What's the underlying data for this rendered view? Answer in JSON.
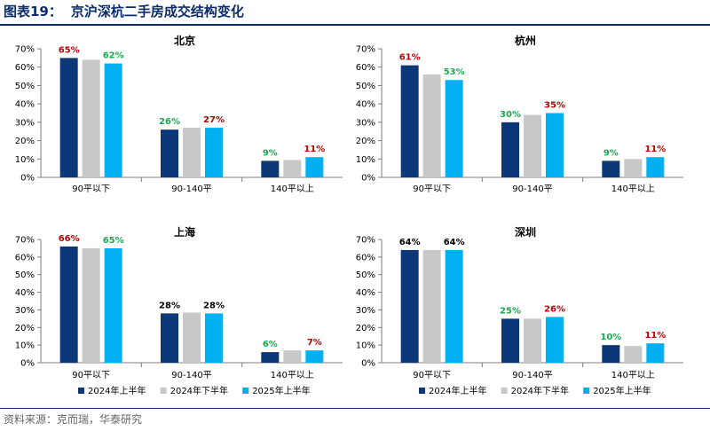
{
  "figure": {
    "label": "图表19：",
    "title": "京沪深杭二手房成交结构变化",
    "source": "资料来源：克而瑞，华泰研究"
  },
  "colors": {
    "series": [
      "#0c3878",
      "#c8c8c8",
      "#00b0f0"
    ],
    "label_red": "#c00000",
    "label_green": "#1aaa50",
    "label_black": "#000000",
    "axis": "#7f7f7f",
    "title_blue": "#0a2c6b"
  },
  "chart_data": [
    {
      "type": "bar",
      "title": "北京",
      "categories": [
        "90平以下",
        "90-140平",
        "140平以上"
      ],
      "ylim": [
        0,
        70
      ],
      "yticks": [
        "0%",
        "10%",
        "20%",
        "30%",
        "40%",
        "50%",
        "60%",
        "70%"
      ],
      "series": [
        {
          "name": "2024年上半年",
          "values": [
            65,
            26,
            9
          ]
        },
        {
          "name": "2024年下半年",
          "values": [
            64,
            27,
            9.5
          ]
        },
        {
          "name": "2025年上半年",
          "values": [
            62,
            27,
            11
          ]
        }
      ],
      "labels": [
        {
          "category": 0,
          "series": 0,
          "text": "65%",
          "color": "red"
        },
        {
          "category": 0,
          "series": 2,
          "text": "62%",
          "color": "green"
        },
        {
          "category": 1,
          "series": 0,
          "text": "26%",
          "color": "green"
        },
        {
          "category": 1,
          "series": 2,
          "text": "27%",
          "color": "red"
        },
        {
          "category": 2,
          "series": 0,
          "text": "9%",
          "color": "green"
        },
        {
          "category": 2,
          "series": 2,
          "text": "11%",
          "color": "red"
        }
      ]
    },
    {
      "type": "bar",
      "title": "杭州",
      "categories": [
        "90平以下",
        "90-140平",
        "140平以上"
      ],
      "ylim": [
        0,
        70
      ],
      "yticks": [
        "0%",
        "10%",
        "20%",
        "30%",
        "40%",
        "50%",
        "60%",
        "70%"
      ],
      "series": [
        {
          "name": "2024年上半年",
          "values": [
            61,
            30,
            9
          ]
        },
        {
          "name": "2024年下半年",
          "values": [
            56,
            34,
            10
          ]
        },
        {
          "name": "2025年上半年",
          "values": [
            53,
            35,
            11
          ]
        }
      ],
      "labels": [
        {
          "category": 0,
          "series": 0,
          "text": "61%",
          "color": "red"
        },
        {
          "category": 0,
          "series": 2,
          "text": "53%",
          "color": "green"
        },
        {
          "category": 1,
          "series": 0,
          "text": "30%",
          "color": "green"
        },
        {
          "category": 1,
          "series": 2,
          "text": "35%",
          "color": "red"
        },
        {
          "category": 2,
          "series": 0,
          "text": "9%",
          "color": "green"
        },
        {
          "category": 2,
          "series": 2,
          "text": "11%",
          "color": "red"
        }
      ]
    },
    {
      "type": "bar",
      "title": "上海",
      "categories": [
        "90平以下",
        "90-140平",
        "140平以上"
      ],
      "ylim": [
        0,
        70
      ],
      "yticks": [
        "0%",
        "10%",
        "20%",
        "30%",
        "40%",
        "50%",
        "60%",
        "70%"
      ],
      "series": [
        {
          "name": "2024年上半年",
          "values": [
            66,
            28,
            6
          ]
        },
        {
          "name": "2024年下半年",
          "values": [
            65,
            28.5,
            7
          ]
        },
        {
          "name": "2025年上半年",
          "values": [
            65,
            28,
            7
          ]
        }
      ],
      "labels": [
        {
          "category": 0,
          "series": 0,
          "text": "66%",
          "color": "red"
        },
        {
          "category": 0,
          "series": 2,
          "text": "65%",
          "color": "green"
        },
        {
          "category": 1,
          "series": 0,
          "text": "28%",
          "color": "black"
        },
        {
          "category": 1,
          "series": 2,
          "text": "28%",
          "color": "black"
        },
        {
          "category": 2,
          "series": 0,
          "text": "6%",
          "color": "green"
        },
        {
          "category": 2,
          "series": 2,
          "text": "7%",
          "color": "red"
        }
      ]
    },
    {
      "type": "bar",
      "title": "深圳",
      "categories": [
        "90平以下",
        "90-140平",
        "140平以上"
      ],
      "ylim": [
        0,
        70
      ],
      "yticks": [
        "0%",
        "10%",
        "20%",
        "30%",
        "40%",
        "50%",
        "60%",
        "70%"
      ],
      "series": [
        {
          "name": "2024年上半年",
          "values": [
            64,
            25,
            10
          ]
        },
        {
          "name": "2024年下半年",
          "values": [
            64,
            25,
            9.5
          ]
        },
        {
          "name": "2025年上半年",
          "values": [
            64,
            26,
            11
          ]
        }
      ],
      "labels": [
        {
          "category": 0,
          "series": 0,
          "text": "64%",
          "color": "black"
        },
        {
          "category": 0,
          "series": 2,
          "text": "64%",
          "color": "black"
        },
        {
          "category": 1,
          "series": 0,
          "text": "25%",
          "color": "green"
        },
        {
          "category": 1,
          "series": 2,
          "text": "26%",
          "color": "red"
        },
        {
          "category": 2,
          "series": 0,
          "text": "10%",
          "color": "green"
        },
        {
          "category": 2,
          "series": 2,
          "text": "11%",
          "color": "red"
        }
      ]
    }
  ]
}
